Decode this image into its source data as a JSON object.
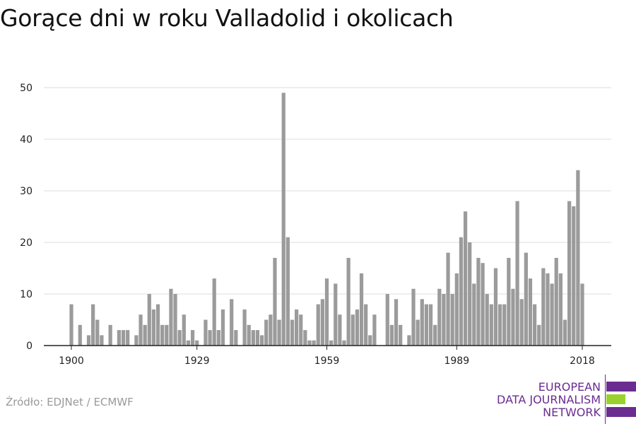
{
  "header": {
    "title": "Gorące dni w roku Valladolid i okolicach"
  },
  "footer": {
    "source": "Źródło: EDJNet / ECMWF"
  },
  "logo": {
    "lines": [
      "EUROPEAN",
      "DATA JOURNALISM",
      "NETWORK"
    ],
    "colors": {
      "purple": "#6b2c91",
      "green": "#9bd12f"
    }
  },
  "chart_data": {
    "type": "bar",
    "title": "Gorące dni w roku Valladolid i okolicach",
    "xlabel": "",
    "ylabel": "",
    "x_ticks": [
      1900,
      1929,
      1959,
      1989,
      2018
    ],
    "y_ticks": [
      0,
      10,
      20,
      30,
      40,
      50
    ],
    "ylim": [
      0,
      50
    ],
    "xlim": [
      1900,
      2018
    ],
    "grid": true,
    "bar_color": "#9b9b9b",
    "grid_color": "#dddddd",
    "categories": [
      1900,
      1901,
      1902,
      1903,
      1904,
      1905,
      1906,
      1907,
      1908,
      1909,
      1910,
      1911,
      1912,
      1913,
      1914,
      1915,
      1916,
      1917,
      1918,
      1919,
      1920,
      1921,
      1922,
      1923,
      1924,
      1925,
      1926,
      1927,
      1928,
      1929,
      1930,
      1931,
      1932,
      1933,
      1934,
      1935,
      1936,
      1937,
      1938,
      1939,
      1940,
      1941,
      1942,
      1943,
      1944,
      1945,
      1946,
      1947,
      1948,
      1949,
      1950,
      1951,
      1952,
      1953,
      1954,
      1955,
      1956,
      1957,
      1958,
      1959,
      1960,
      1961,
      1962,
      1963,
      1964,
      1965,
      1966,
      1967,
      1968,
      1969,
      1970,
      1971,
      1972,
      1973,
      1974,
      1975,
      1976,
      1977,
      1978,
      1979,
      1980,
      1981,
      1982,
      1983,
      1984,
      1985,
      1986,
      1987,
      1988,
      1989,
      1990,
      1991,
      1992,
      1993,
      1994,
      1995,
      1996,
      1997,
      1998,
      1999,
      2000,
      2001,
      2002,
      2003,
      2004,
      2005,
      2006,
      2007,
      2008,
      2009,
      2010,
      2011,
      2012,
      2013,
      2014,
      2015,
      2016,
      2017,
      2018
    ],
    "values": [
      8,
      0,
      4,
      0,
      2,
      8,
      5,
      2,
      0,
      4,
      0,
      3,
      3,
      3,
      0,
      2,
      6,
      4,
      10,
      7,
      8,
      4,
      4,
      11,
      10,
      3,
      6,
      1,
      3,
      1,
      0,
      5,
      3,
      13,
      3,
      7,
      0,
      9,
      3,
      0,
      7,
      4,
      3,
      3,
      2,
      5,
      6,
      17,
      5,
      49,
      21,
      5,
      7,
      6,
      3,
      1,
      1,
      8,
      9,
      13,
      1,
      12,
      6,
      1,
      17,
      6,
      7,
      14,
      8,
      2,
      6,
      0,
      0,
      10,
      4,
      9,
      4,
      0,
      2,
      11,
      5,
      9,
      8,
      8,
      4,
      11,
      10,
      18,
      10,
      14,
      21,
      26,
      20,
      12,
      17,
      16,
      10,
      8,
      15,
      8,
      8,
      17,
      11,
      28,
      9,
      18,
      13,
      8,
      4,
      15,
      14,
      12,
      17,
      14,
      5,
      28,
      27,
      34,
      12
    ]
  }
}
